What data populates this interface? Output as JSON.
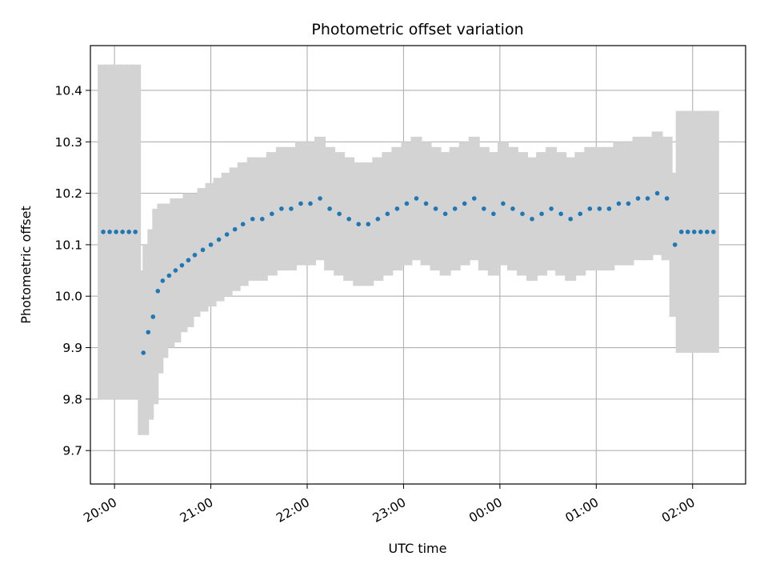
{
  "chart_data": {
    "type": "scatter",
    "title": "Photometric offset variation",
    "xlabel": "UTC time",
    "ylabel": "Photometric offset",
    "x_unit": "UTC time",
    "xlim": [
      "19:45",
      "02:33"
    ],
    "ylim": [
      9.635,
      10.487
    ],
    "grid": true,
    "legend": "none",
    "x_ticks": [
      {
        "label": "20:00",
        "value": "20:00"
      },
      {
        "label": "21:00",
        "value": "21:00"
      },
      {
        "label": "22:00",
        "value": "22:00"
      },
      {
        "label": "23:00",
        "value": "23:00"
      },
      {
        "label": "00:00",
        "value": "00:00"
      },
      {
        "label": "01:00",
        "value": "01:00"
      },
      {
        "label": "02:00",
        "value": "02:00"
      }
    ],
    "y_ticks": [
      {
        "label": "9.7",
        "value": 9.7
      },
      {
        "label": "9.8",
        "value": 9.8
      },
      {
        "label": "9.9",
        "value": 9.9
      },
      {
        "label": "10.0",
        "value": 10.0
      },
      {
        "label": "10.1",
        "value": 10.1
      },
      {
        "label": "10.2",
        "value": 10.2
      },
      {
        "label": "10.3",
        "value": 10.3
      },
      {
        "label": "10.4",
        "value": 10.4
      }
    ],
    "colors": {
      "points": "#1f77b4",
      "error_bars": "#d3d3d3",
      "grid": "#b0b0b0"
    },
    "series": [
      {
        "marker": "point",
        "with_error_bars": true,
        "x": [
          "19:53",
          "19:57",
          "20:01",
          "20:05",
          "20:09",
          "20:13",
          "20:18",
          "20:21",
          "20:24",
          "20:27",
          "20:30",
          "20:34",
          "20:38",
          "20:42",
          "20:46",
          "20:50",
          "20:55",
          "21:00",
          "21:05",
          "21:10",
          "21:15",
          "21:20",
          "21:26",
          "21:32",
          "21:38",
          "21:44",
          "21:50",
          "21:56",
          "22:02",
          "22:08",
          "22:14",
          "22:20",
          "22:26",
          "22:32",
          "22:38",
          "22:44",
          "22:50",
          "22:56",
          "23:02",
          "23:08",
          "23:14",
          "23:20",
          "23:26",
          "23:32",
          "23:38",
          "23:44",
          "23:50",
          "23:56",
          "00:02",
          "00:08",
          "00:14",
          "00:20",
          "00:26",
          "00:32",
          "00:38",
          "00:44",
          "00:50",
          "00:56",
          "01:02",
          "01:08",
          "01:14",
          "01:20",
          "01:26",
          "01:32",
          "01:38",
          "01:44",
          "01:49",
          "01:53",
          "01:57",
          "02:01",
          "02:05",
          "02:09",
          "02:13"
        ],
        "y": [
          10.125,
          10.125,
          10.125,
          10.125,
          10.125,
          10.125,
          9.89,
          9.93,
          9.96,
          10.01,
          10.03,
          10.04,
          10.05,
          10.06,
          10.07,
          10.08,
          10.09,
          10.1,
          10.11,
          10.12,
          10.13,
          10.14,
          10.15,
          10.15,
          10.16,
          10.17,
          10.17,
          10.18,
          10.18,
          10.19,
          10.17,
          10.16,
          10.15,
          10.14,
          10.14,
          10.15,
          10.16,
          10.17,
          10.18,
          10.19,
          10.18,
          10.17,
          10.16,
          10.17,
          10.18,
          10.19,
          10.17,
          10.16,
          10.18,
          10.17,
          10.16,
          10.15,
          10.16,
          10.17,
          10.16,
          10.15,
          10.16,
          10.17,
          10.17,
          10.17,
          10.18,
          10.18,
          10.19,
          10.19,
          10.2,
          10.19,
          10.1,
          10.125,
          10.125,
          10.125,
          10.125,
          10.125,
          10.125
        ],
        "y_err": [
          0.325,
          0.325,
          0.325,
          0.325,
          0.325,
          0.325,
          0.16,
          0.17,
          0.17,
          0.16,
          0.15,
          0.14,
          0.14,
          0.13,
          0.13,
          0.12,
          0.12,
          0.12,
          0.12,
          0.12,
          0.12,
          0.12,
          0.12,
          0.12,
          0.12,
          0.12,
          0.12,
          0.12,
          0.12,
          0.12,
          0.12,
          0.12,
          0.12,
          0.12,
          0.12,
          0.12,
          0.12,
          0.12,
          0.12,
          0.12,
          0.12,
          0.12,
          0.12,
          0.12,
          0.12,
          0.12,
          0.12,
          0.12,
          0.12,
          0.12,
          0.12,
          0.12,
          0.12,
          0.12,
          0.12,
          0.12,
          0.12,
          0.12,
          0.12,
          0.12,
          0.12,
          0.12,
          0.12,
          0.12,
          0.12,
          0.12,
          0.14,
          0.235,
          0.235,
          0.235,
          0.235,
          0.235,
          0.235
        ]
      }
    ]
  }
}
